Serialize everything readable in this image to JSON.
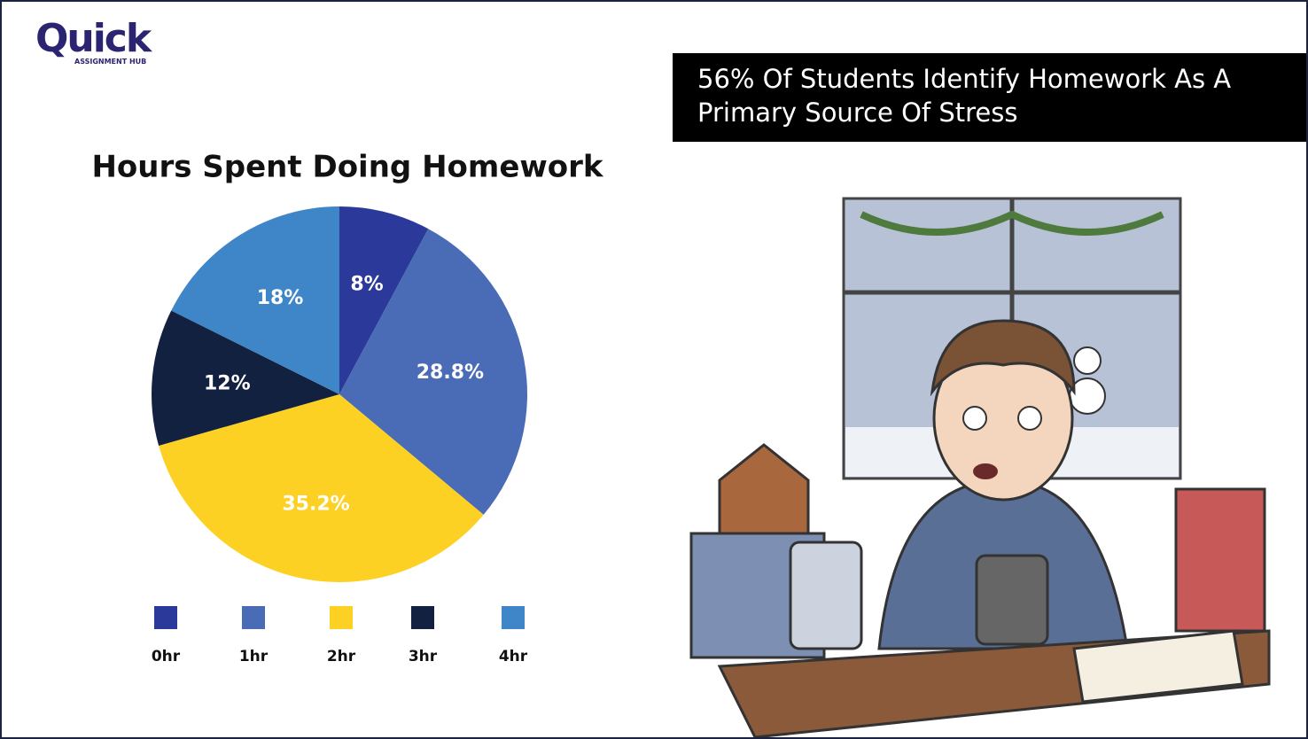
{
  "logo": {
    "name": "Quick",
    "tagline": "ASSIGNMENT HUB"
  },
  "headline": "56% Of Students Identify Homework As A Primary Source Of Stress",
  "chart_data": {
    "type": "pie",
    "title": "Hours Spent Doing Homework",
    "categories": [
      "0hr",
      "1hr",
      "2hr",
      "3hr",
      "4hr"
    ],
    "values": [
      8,
      28.8,
      35.2,
      12,
      18
    ],
    "value_labels": [
      "8%",
      "28.8%",
      "35.2%",
      "12%",
      "18%"
    ],
    "colors": [
      "#2b3a9a",
      "#4a6bb5",
      "#fcd124",
      "#12213f",
      "#3f86c8"
    ]
  }
}
